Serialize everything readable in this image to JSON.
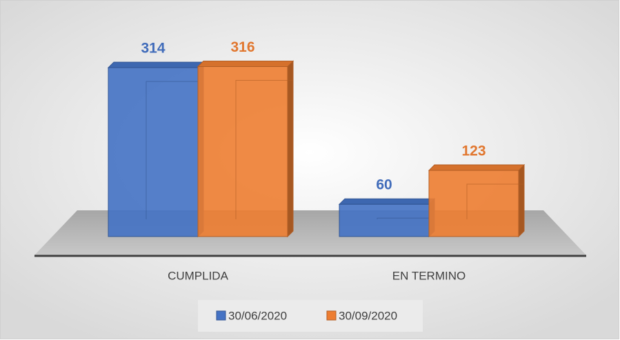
{
  "chart_data": {
    "type": "bar3d",
    "categories": [
      "CUMPLIDA",
      "EN TERMINO"
    ],
    "series": [
      {
        "name": "30/06/2020",
        "color": "#4472c4",
        "values": [
          314,
          60
        ]
      },
      {
        "name": "30/09/2020",
        "color": "#ed7d31",
        "values": [
          316,
          123
        ]
      }
    ]
  }
}
